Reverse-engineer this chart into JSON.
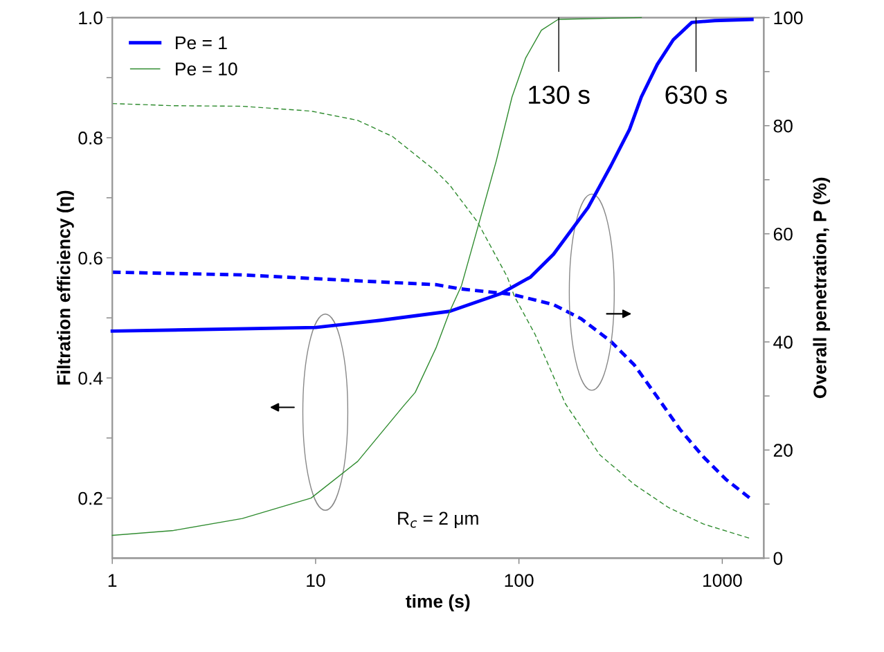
{
  "chart_data": {
    "type": "line",
    "xlabel": "time (s)",
    "ylabel": "Filtration efficiency (η)",
    "y2label": "Overall penetration, P (%)",
    "log": "x",
    "xlim": [
      1,
      1600
    ],
    "xticks": [
      1,
      10,
      100,
      1000
    ],
    "ylim": [
      0.1,
      1.0
    ],
    "yticks": [
      {
        "value": 0.2,
        "label": "0.2"
      },
      {
        "value": 0.3,
        "label": null
      },
      {
        "value": 0.4,
        "label": "0.4"
      },
      {
        "value": 0.5,
        "label": null
      },
      {
        "value": 0.6,
        "label": "0.6"
      },
      {
        "value": 0.7,
        "label": null
      },
      {
        "value": 0.8,
        "label": "0.8"
      },
      {
        "value": 0.9,
        "label": null
      },
      {
        "value": 1.0,
        "label": "1.0"
      }
    ],
    "y2lim": [
      0,
      100
    ],
    "y2ticks": [
      0,
      {
        "value": 10,
        "label": null
      },
      20,
      {
        "value": 30,
        "label": null
      },
      40,
      {
        "value": 50,
        "label": null
      },
      60,
      {
        "value": 70,
        "label": null
      },
      80,
      {
        "value": 90,
        "label": null
      },
      100
    ],
    "legend": "top left",
    "grid": false,
    "series": [
      {
        "name": "Pe = 1",
        "color": "#0000ff",
        "line_style": "solid",
        "x": [
          1,
          10,
          20.9,
          45.7,
          80.9,
          114,
          148,
          219,
          283,
          350,
          400,
          479,
          574,
          708,
          918,
          1400
        ],
        "values": [
          0.478,
          0.484,
          0.496,
          0.511,
          0.54,
          0.568,
          0.606,
          0.684,
          0.753,
          0.814,
          0.868,
          0.922,
          0.963,
          0.992,
          0.995,
          0.997
        ]
      },
      {
        "name": "Pe = 10",
        "color": "#2e8b2e",
        "line_style": "solid",
        "x": [
          1,
          2,
          4.36,
          9.5,
          16.1,
          27,
          30.9,
          39.1,
          45.7,
          52.2,
          64,
          77.3,
          92.5,
          108,
          129,
          156,
          400
        ],
        "values": [
          0.138,
          0.146,
          0.166,
          0.2,
          0.261,
          0.353,
          0.376,
          0.45,
          0.511,
          0.554,
          0.661,
          0.761,
          0.868,
          0.933,
          0.979,
          0.997,
          1.0
        ]
      },
      {
        "color": "#0000ff",
        "line_style": "dashed",
        "axis": "y2",
        "x": [
          1,
          4.36,
          16.1,
          39,
          52,
          92.5,
          148,
          202,
          283,
          370,
          479,
          620,
          809,
          1047,
          1400
        ],
        "values": [
          52.9,
          52.4,
          51.3,
          50.6,
          49.8,
          48.8,
          46.9,
          44.3,
          40.1,
          35.7,
          29.8,
          23.8,
          18.7,
          14.5,
          10.8
        ]
      },
      {
        "color": "#2e8b2e",
        "line_style": "dashed",
        "axis": "y2",
        "x": [
          1,
          2,
          4.36,
          9.5,
          16.1,
          23.9,
          39,
          45.7,
          62.5,
          87.7,
          94.8,
          120,
          169,
          250,
          370,
          547,
          809,
          1358
        ],
        "values": [
          84.1,
          83.7,
          83.6,
          82.7,
          81.0,
          78.0,
          71.6,
          69.0,
          62.2,
          52.0,
          48.5,
          41.4,
          28.6,
          19.1,
          13.6,
          9.3,
          6.3,
          3.7
        ]
      }
    ],
    "annotations": [
      {
        "text": "130 s",
        "x": 157,
        "y": 1.0
      },
      {
        "text": "630 s",
        "x": 743,
        "y": 1.0
      },
      "R$_{c}$ = 2 μm"
    ]
  }
}
